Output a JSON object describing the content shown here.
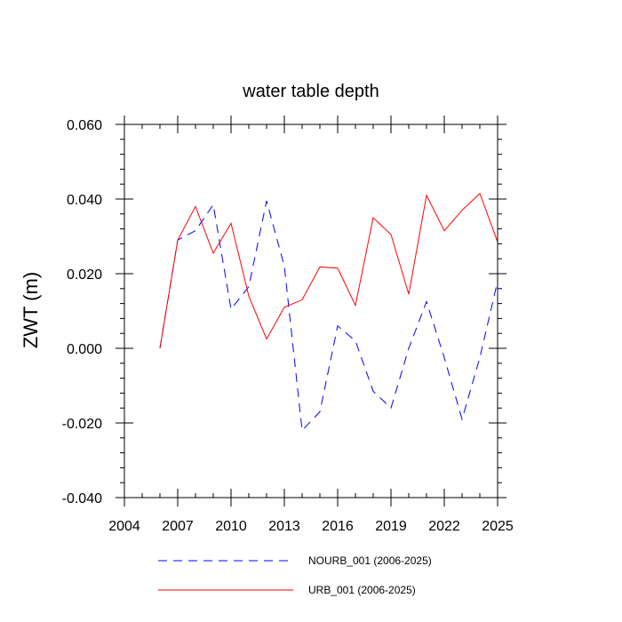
{
  "chart_data": {
    "type": "line",
    "title": "water table depth",
    "xlabel": "",
    "ylabel": "ZWT  (m)",
    "xlim": [
      2004,
      2025
    ],
    "ylim": [
      -0.04,
      0.06
    ],
    "x_ticks": [
      2004,
      2007,
      2010,
      2013,
      2016,
      2019,
      2022,
      2025
    ],
    "y_ticks": [
      -0.04,
      -0.02,
      0.0,
      0.02,
      0.04,
      0.06
    ],
    "x_tick_labels": [
      "2004",
      "2007",
      "2010",
      "2013",
      "2016",
      "2019",
      "2022",
      "2025"
    ],
    "y_tick_labels": [
      "-0.040",
      "-0.020",
      "0.000",
      "0.020",
      "0.040",
      "0.060"
    ],
    "grid": false,
    "legend_position": "bottom",
    "x": [
      2006,
      2007,
      2008,
      2009,
      2010,
      2011,
      2012,
      2013,
      2014,
      2015,
      2016,
      2017,
      2018,
      2019,
      2020,
      2021,
      2022,
      2023,
      2024,
      2025
    ],
    "series": [
      {
        "name": "NOURB_001 (2006-2025)",
        "color": "#0000ff",
        "dash": "dashed",
        "values": [
          0.0,
          0.029,
          0.0315,
          0.0385,
          0.0105,
          0.0165,
          0.0395,
          0.022,
          -0.022,
          -0.017,
          0.006,
          0.002,
          -0.0115,
          -0.016,
          0.0,
          0.0125,
          -0.0025,
          -0.019,
          -0.0025,
          0.018
        ]
      },
      {
        "name": "URB_001 (2006-2025)",
        "color": "#ff0000",
        "dash": "solid",
        "values": [
          0.0,
          0.029,
          0.038,
          0.0255,
          0.0335,
          0.014,
          0.0025,
          0.011,
          0.013,
          0.0218,
          0.0215,
          0.0115,
          0.035,
          0.0305,
          0.0145,
          0.041,
          0.0315,
          0.037,
          0.0415,
          0.0285
        ]
      }
    ]
  }
}
